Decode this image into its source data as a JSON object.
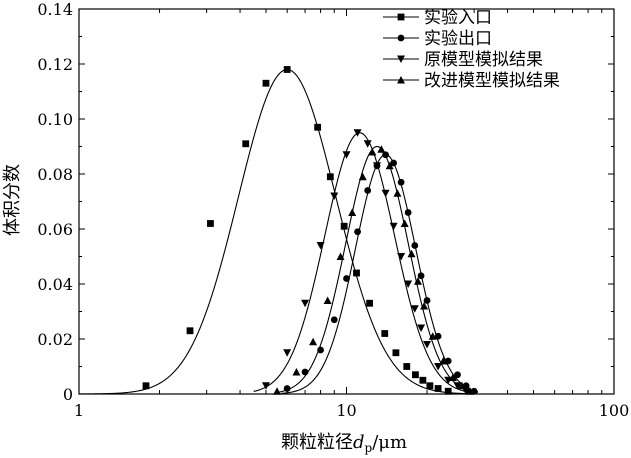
{
  "chart_data": {
    "type": "line",
    "x_scale": "log",
    "xlim": [
      1,
      100
    ],
    "ylim": [
      0,
      0.14
    ],
    "x_ticks": [
      1,
      10,
      100
    ],
    "x_tick_labels": [
      "1",
      "10",
      "100"
    ],
    "y_ticks": [
      0,
      0.02,
      0.04,
      0.06,
      0.08,
      0.1,
      0.12,
      0.14
    ],
    "y_tick_labels": [
      "0",
      "0.02",
      "0.04",
      "0.06",
      "0.08",
      "0.10",
      "0.12",
      "0.14"
    ],
    "xlabel": {
      "main": "颗粒粒径",
      "var": "d",
      "sub": "p",
      "unit": "/μm"
    },
    "ylabel": "体积分数",
    "grid": false,
    "legend_position": "top-right",
    "series": [
      {
        "name": "实验入口",
        "marker": "square",
        "x": [
          1.78,
          2.6,
          3.1,
          4.2,
          5.0,
          6.0,
          7.8,
          8.7,
          9.8,
          10.9,
          12.2,
          13.9,
          15.3,
          16.8,
          18.1,
          19.3,
          20.5,
          22.0,
          24.0
        ],
        "y": [
          0.003,
          0.023,
          0.062,
          0.091,
          0.113,
          0.118,
          0.097,
          0.079,
          0.061,
          0.044,
          0.033,
          0.022,
          0.015,
          0.01,
          0.007,
          0.005,
          0.003,
          0.002,
          0.001
        ]
      },
      {
        "name": "实验出口",
        "marker": "circle",
        "x": [
          6.0,
          7.0,
          8.0,
          9.0,
          10.0,
          11.0,
          12.0,
          13.0,
          14.0,
          15.0,
          16.0,
          17.0,
          18.0,
          19.0,
          20.0,
          22.0,
          24.0,
          26.0,
          28.0,
          30.0
        ],
        "y": [
          0.002,
          0.008,
          0.016,
          0.027,
          0.042,
          0.059,
          0.074,
          0.083,
          0.087,
          0.084,
          0.077,
          0.066,
          0.054,
          0.043,
          0.034,
          0.021,
          0.012,
          0.007,
          0.003,
          0.001
        ]
      },
      {
        "name": "原模型模拟结果",
        "marker": "triangle-down",
        "x": [
          5.0,
          6.0,
          7.0,
          8.0,
          9.0,
          10.0,
          11.0,
          12.0,
          13.0,
          14.0,
          15.0,
          16.0,
          17.0,
          18.0,
          19.0,
          20.0,
          22.0,
          24.0,
          26.0,
          28.0
        ],
        "y": [
          0.003,
          0.015,
          0.033,
          0.054,
          0.072,
          0.087,
          0.095,
          0.091,
          0.083,
          0.073,
          0.061,
          0.05,
          0.04,
          0.031,
          0.024,
          0.018,
          0.01,
          0.005,
          0.003,
          0.001
        ]
      },
      {
        "name": "改进模型模拟结果",
        "marker": "triangle-up",
        "x": [
          5.5,
          6.5,
          7.5,
          8.5,
          9.5,
          10.5,
          11.5,
          12.5,
          13.5,
          14.5,
          15.5,
          16.5,
          17.5,
          18.5,
          19.5,
          21.0,
          23.0,
          25.0,
          27.0,
          29.0
        ],
        "y": [
          0.001,
          0.008,
          0.019,
          0.034,
          0.05,
          0.066,
          0.079,
          0.088,
          0.089,
          0.083,
          0.073,
          0.062,
          0.051,
          0.041,
          0.032,
          0.021,
          0.012,
          0.006,
          0.003,
          0.001
        ]
      }
    ]
  }
}
